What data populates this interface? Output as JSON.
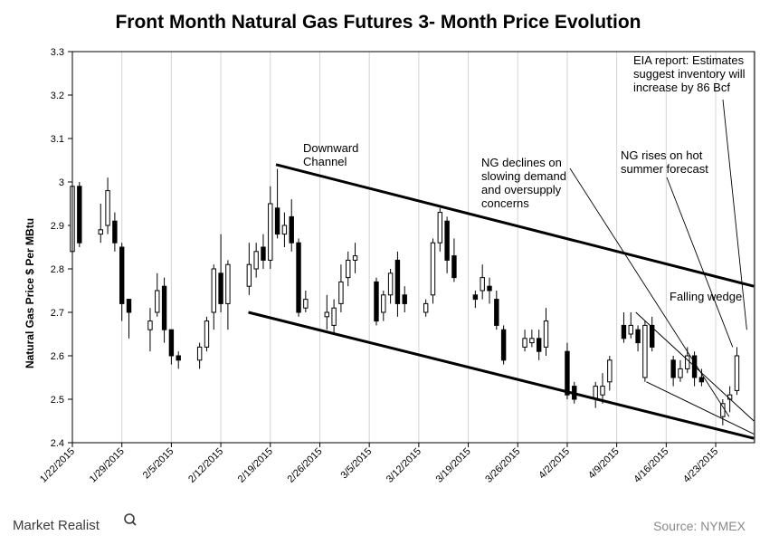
{
  "chart_data": {
    "type": "candlestick",
    "title": "Front Month Natural Gas Futures 3- Month Price Evolution",
    "ylabel": "Natural Gas Price $ Per MBtu",
    "xlabel": "",
    "ylim": [
      2.4,
      3.3
    ],
    "y_ticks": [
      "2.4",
      "2.5",
      "2.6",
      "2.7",
      "2.8",
      "2.9",
      "3",
      "3.1",
      "3.2",
      "3.3"
    ],
    "x_ticks": [
      "1/22/2015",
      "1/29/2015",
      "2/5/2015",
      "2/12/2015",
      "2/19/2015",
      "2/26/2015",
      "3/5/2015",
      "3/12/2015",
      "3/19/2015",
      "3/26/2015",
      "4/2/2015",
      "4/9/2015",
      "4/16/2015",
      "4/23/2015"
    ],
    "grid": "vertical",
    "candles": [
      {
        "day": 0,
        "open": 2.84,
        "close": 2.99,
        "high": 3.05,
        "low": 2.77
      },
      {
        "day": 1,
        "open": 2.99,
        "close": 2.86,
        "high": 3.0,
        "low": 2.85
      },
      {
        "day": 4,
        "open": 2.88,
        "close": 2.89,
        "high": 2.95,
        "low": 2.86
      },
      {
        "day": 5,
        "open": 2.9,
        "close": 2.98,
        "high": 3.01,
        "low": 2.88
      },
      {
        "day": 6,
        "open": 2.91,
        "close": 2.86,
        "high": 2.93,
        "low": 2.84
      },
      {
        "day": 7,
        "open": 2.85,
        "close": 2.72,
        "high": 2.86,
        "low": 2.68
      },
      {
        "day": 8,
        "open": 2.73,
        "close": 2.7,
        "high": 2.73,
        "low": 2.64
      },
      {
        "day": 11,
        "open": 2.66,
        "close": 2.68,
        "high": 2.71,
        "low": 2.61
      },
      {
        "day": 12,
        "open": 2.7,
        "close": 2.75,
        "high": 2.79,
        "low": 2.69
      },
      {
        "day": 13,
        "open": 2.76,
        "close": 2.66,
        "high": 2.78,
        "low": 2.63
      },
      {
        "day": 14,
        "open": 2.66,
        "close": 2.6,
        "high": 2.66,
        "low": 2.58
      },
      {
        "day": 15,
        "open": 2.6,
        "close": 2.59,
        "high": 2.61,
        "low": 2.57
      },
      {
        "day": 18,
        "open": 2.59,
        "close": 2.62,
        "high": 2.63,
        "low": 2.57
      },
      {
        "day": 19,
        "open": 2.62,
        "close": 2.68,
        "high": 2.69,
        "low": 2.61
      },
      {
        "day": 20,
        "open": 2.7,
        "close": 2.8,
        "high": 2.81,
        "low": 2.66
      },
      {
        "day": 21,
        "open": 2.79,
        "close": 2.72,
        "high": 2.88,
        "low": 2.7
      },
      {
        "day": 22,
        "open": 2.72,
        "close": 2.81,
        "high": 2.82,
        "low": 2.66
      },
      {
        "day": 25,
        "open": 2.76,
        "close": 2.81,
        "high": 2.86,
        "low": 2.74
      },
      {
        "day": 26,
        "open": 2.8,
        "close": 2.84,
        "high": 2.86,
        "low": 2.78
      },
      {
        "day": 27,
        "open": 2.85,
        "close": 2.82,
        "high": 2.88,
        "low": 2.8
      },
      {
        "day": 28,
        "open": 2.82,
        "close": 2.95,
        "high": 2.99,
        "low": 2.8
      },
      {
        "day": 29,
        "open": 2.94,
        "close": 2.88,
        "high": 3.03,
        "low": 2.87
      },
      {
        "day": 30,
        "open": 2.88,
        "close": 2.9,
        "high": 2.93,
        "low": 2.85
      },
      {
        "day": 31,
        "open": 2.92,
        "close": 2.86,
        "high": 2.96,
        "low": 2.84
      },
      {
        "day": 32,
        "open": 2.86,
        "close": 2.7,
        "high": 2.87,
        "low": 2.69
      },
      {
        "day": 33,
        "open": 2.71,
        "close": 2.73,
        "high": 2.75,
        "low": 2.7
      },
      {
        "day": 36,
        "open": 2.69,
        "close": 2.7,
        "high": 2.74,
        "low": 2.66
      },
      {
        "day": 37,
        "open": 2.67,
        "close": 2.71,
        "high": 2.73,
        "low": 2.65
      },
      {
        "day": 38,
        "open": 2.72,
        "close": 2.77,
        "high": 2.81,
        "low": 2.7
      },
      {
        "day": 39,
        "open": 2.78,
        "close": 2.82,
        "high": 2.84,
        "low": 2.76
      },
      {
        "day": 40,
        "open": 2.82,
        "close": 2.83,
        "high": 2.86,
        "low": 2.79
      },
      {
        "day": 43,
        "open": 2.77,
        "close": 2.68,
        "high": 2.78,
        "low": 2.67
      },
      {
        "day": 44,
        "open": 2.7,
        "close": 2.74,
        "high": 2.75,
        "low": 2.68
      },
      {
        "day": 45,
        "open": 2.74,
        "close": 2.79,
        "high": 2.8,
        "low": 2.72
      },
      {
        "day": 46,
        "open": 2.82,
        "close": 2.72,
        "high": 2.84,
        "low": 2.69
      },
      {
        "day": 47,
        "open": 2.74,
        "close": 2.72,
        "high": 2.76,
        "low": 2.7
      },
      {
        "day": 50,
        "open": 2.7,
        "close": 2.72,
        "high": 2.73,
        "low": 2.69
      },
      {
        "day": 51,
        "open": 2.74,
        "close": 2.86,
        "high": 2.87,
        "low": 2.72
      },
      {
        "day": 52,
        "open": 2.86,
        "close": 2.93,
        "high": 2.94,
        "low": 2.84
      },
      {
        "day": 53,
        "open": 2.91,
        "close": 2.82,
        "high": 2.92,
        "low": 2.79
      },
      {
        "day": 54,
        "open": 2.83,
        "close": 2.78,
        "high": 2.87,
        "low": 2.77
      },
      {
        "day": 57,
        "open": 2.74,
        "close": 2.73,
        "high": 2.75,
        "low": 2.71
      },
      {
        "day": 58,
        "open": 2.75,
        "close": 2.78,
        "high": 2.81,
        "low": 2.73
      },
      {
        "day": 59,
        "open": 2.76,
        "close": 2.75,
        "high": 2.78,
        "low": 2.72
      },
      {
        "day": 60,
        "open": 2.73,
        "close": 2.67,
        "high": 2.75,
        "low": 2.66
      },
      {
        "day": 61,
        "open": 2.66,
        "close": 2.59,
        "high": 2.67,
        "low": 2.58
      },
      {
        "day": 64,
        "open": 2.62,
        "close": 2.64,
        "high": 2.66,
        "low": 2.61
      },
      {
        "day": 65,
        "open": 2.63,
        "close": 2.64,
        "high": 2.66,
        "low": 2.62
      },
      {
        "day": 66,
        "open": 2.64,
        "close": 2.61,
        "high": 2.66,
        "low": 2.59
      },
      {
        "day": 67,
        "open": 2.62,
        "close": 2.68,
        "high": 2.71,
        "low": 2.6
      },
      {
        "day": 70,
        "open": 2.61,
        "close": 2.51,
        "high": 2.63,
        "low": 2.5
      },
      {
        "day": 71,
        "open": 2.53,
        "close": 2.5,
        "high": 2.54,
        "low": 2.49
      },
      {
        "day": 74,
        "open": 2.5,
        "close": 2.53,
        "high": 2.54,
        "low": 2.48
      },
      {
        "day": 75,
        "open": 2.51,
        "close": 2.53,
        "high": 2.56,
        "low": 2.49
      },
      {
        "day": 76,
        "open": 2.54,
        "close": 2.59,
        "high": 2.6,
        "low": 2.52
      },
      {
        "day": 78,
        "open": 2.67,
        "close": 2.64,
        "high": 2.7,
        "low": 2.63
      },
      {
        "day": 79,
        "open": 2.65,
        "close": 2.67,
        "high": 2.7,
        "low": 2.64
      },
      {
        "day": 80,
        "open": 2.66,
        "close": 2.63,
        "high": 2.67,
        "low": 2.61
      },
      {
        "day": 81,
        "open": 2.55,
        "close": 2.67,
        "high": 2.68,
        "low": 2.54
      },
      {
        "day": 82,
        "open": 2.67,
        "close": 2.62,
        "high": 2.69,
        "low": 2.61
      },
      {
        "day": 85,
        "open": 2.59,
        "close": 2.55,
        "high": 2.6,
        "low": 2.53
      },
      {
        "day": 86,
        "open": 2.55,
        "close": 2.57,
        "high": 2.59,
        "low": 2.54
      },
      {
        "day": 87,
        "open": 2.57,
        "close": 2.6,
        "high": 2.62,
        "low": 2.56
      },
      {
        "day": 88,
        "open": 2.6,
        "close": 2.55,
        "high": 2.61,
        "low": 2.53
      },
      {
        "day": 89,
        "open": 2.55,
        "close": 2.54,
        "high": 2.57,
        "low": 2.53
      },
      {
        "day": 92,
        "open": 2.46,
        "close": 2.49,
        "high": 2.5,
        "low": 2.44
      },
      {
        "day": 93,
        "open": 2.5,
        "close": 2.51,
        "high": 2.53,
        "low": 2.47
      },
      {
        "day": 94,
        "open": 2.52,
        "close": 2.6,
        "high": 2.62,
        "low": 2.51
      }
    ],
    "trend_lines": [
      {
        "name": "channel-upper",
        "from": {
          "day": 28.8,
          "price": 3.04
        },
        "to": {
          "day": 96.4,
          "price": 2.76
        }
      },
      {
        "name": "channel-lower",
        "from": {
          "day": 24.9,
          "price": 2.7
        },
        "to": {
          "day": 96.4,
          "price": 2.41
        }
      },
      {
        "name": "wedge-upper",
        "from": {
          "day": 79.7,
          "price": 2.7
        },
        "to": {
          "day": 96.4,
          "price": 2.45
        }
      },
      {
        "name": "wedge-lower",
        "from": {
          "day": 81.2,
          "price": 2.54
        },
        "to": {
          "day": 96.4,
          "price": 2.42
        }
      }
    ],
    "annotations": [
      {
        "lines": [
          "Downward",
          "Channel"
        ]
      },
      {
        "lines": [
          "NG declines on",
          "slowing demand",
          "and oversupply",
          "concerns"
        ],
        "pointer_to": {
          "day": 92.9,
          "price": 2.46
        }
      },
      {
        "lines": [
          "NG rises on hot",
          "summer forecast"
        ],
        "pointer_to": {
          "day": 93.4,
          "price": 2.62
        }
      },
      {
        "lines": [
          "EIA report: Estimates",
          "suggest inventory will",
          "increase by 86 Bcf"
        ],
        "pointer_to": {
          "day": 95.4,
          "price": 2.66
        }
      },
      {
        "lines": [
          "Falling wedge"
        ]
      }
    ]
  },
  "footer": {
    "brand": "Market Realist",
    "source": "Source: NYMEX"
  }
}
